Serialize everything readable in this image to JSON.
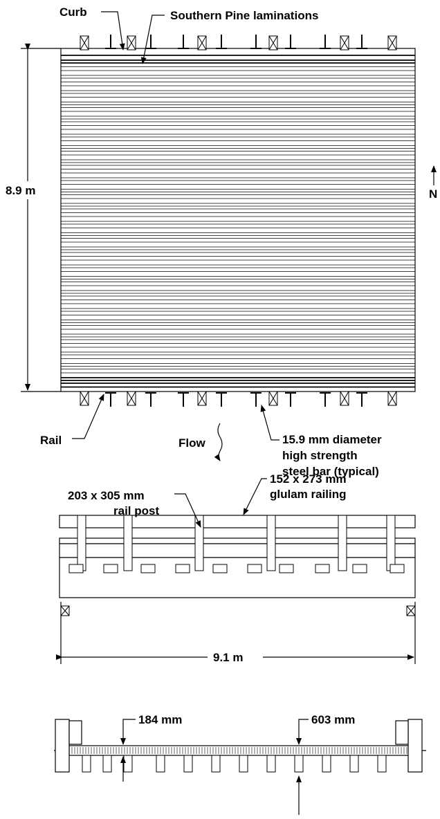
{
  "plan_view": {
    "curb_label": "Curb",
    "laminations_label": "Southern Pine laminations",
    "width_dimension": "8.9 m",
    "north_label": "N",
    "rail_label": "Rail",
    "flow_label": "Flow",
    "steel_bar_label": [
      "15.9 mm diameter",
      "high strength",
      "steel bar (typical)"
    ]
  },
  "elevation_view": {
    "rail_post_label": [
      "203 x 305 mm",
      "rail post"
    ],
    "railing_label": [
      "152 x 273 mm",
      "glulam railing"
    ],
    "length_dimension": "9.1 m"
  },
  "section_view": {
    "deck_thickness_label": "184 mm",
    "stringer_depth_label": "603 mm"
  }
}
